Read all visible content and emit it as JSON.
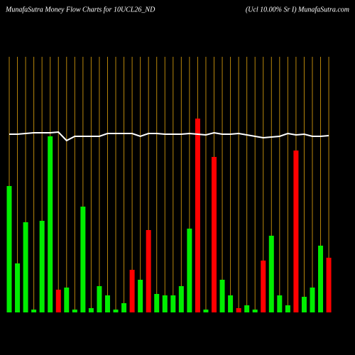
{
  "chart_data": {
    "type": "money-flow-bar",
    "title": "MunafaSutra  Money Flow  Charts for 10UCL26_ND",
    "subtitle": "(Ucl 10.00% Sr I) MunafaSutra.com",
    "ylim": [
      0,
      360
    ],
    "grid_color": "#b8860b",
    "line_color": "#ffffff",
    "series": [
      {
        "name": "Money Flow",
        "values": [
          178,
          69,
          127,
          4,
          129,
          248,
          32,
          35,
          4,
          149,
          6,
          37,
          24,
          4,
          13,
          60,
          46,
          116,
          26,
          24,
          24,
          37,
          118,
          273,
          4,
          219,
          46,
          24,
          6,
          10,
          4,
          73,
          108,
          24,
          10,
          228,
          22,
          35,
          94,
          77
        ],
        "colors": [
          "#00ee00",
          "#00ee00",
          "#00ee00",
          "#00ee00",
          "#00ee00",
          "#00ee00",
          "#ff0000",
          "#00ee00",
          "#00ee00",
          "#00ee00",
          "#00ee00",
          "#00ee00",
          "#00ee00",
          "#00ee00",
          "#00ee00",
          "#ff0000",
          "#00ee00",
          "#ff0000",
          "#00ee00",
          "#00ee00",
          "#00ee00",
          "#00ee00",
          "#00ee00",
          "#ff0000",
          "#00ee00",
          "#ff0000",
          "#00ee00",
          "#00ee00",
          "#ff0000",
          "#00ee00",
          "#00ee00",
          "#ff0000",
          "#00ee00",
          "#00ee00",
          "#00ee00",
          "#ff0000",
          "#00ee00",
          "#00ee00",
          "#00ee00",
          "#ff0000"
        ]
      },
      {
        "name": "Price",
        "values": [
          251,
          251,
          252,
          253,
          253,
          253,
          254,
          242,
          248,
          248,
          248,
          248,
          252,
          252,
          252,
          252,
          248,
          252,
          252,
          251,
          251,
          251,
          252,
          251,
          250,
          253,
          251,
          251,
          252,
          250,
          248,
          246,
          247,
          248,
          252,
          250,
          251,
          248,
          248,
          249
        ]
      }
    ]
  }
}
